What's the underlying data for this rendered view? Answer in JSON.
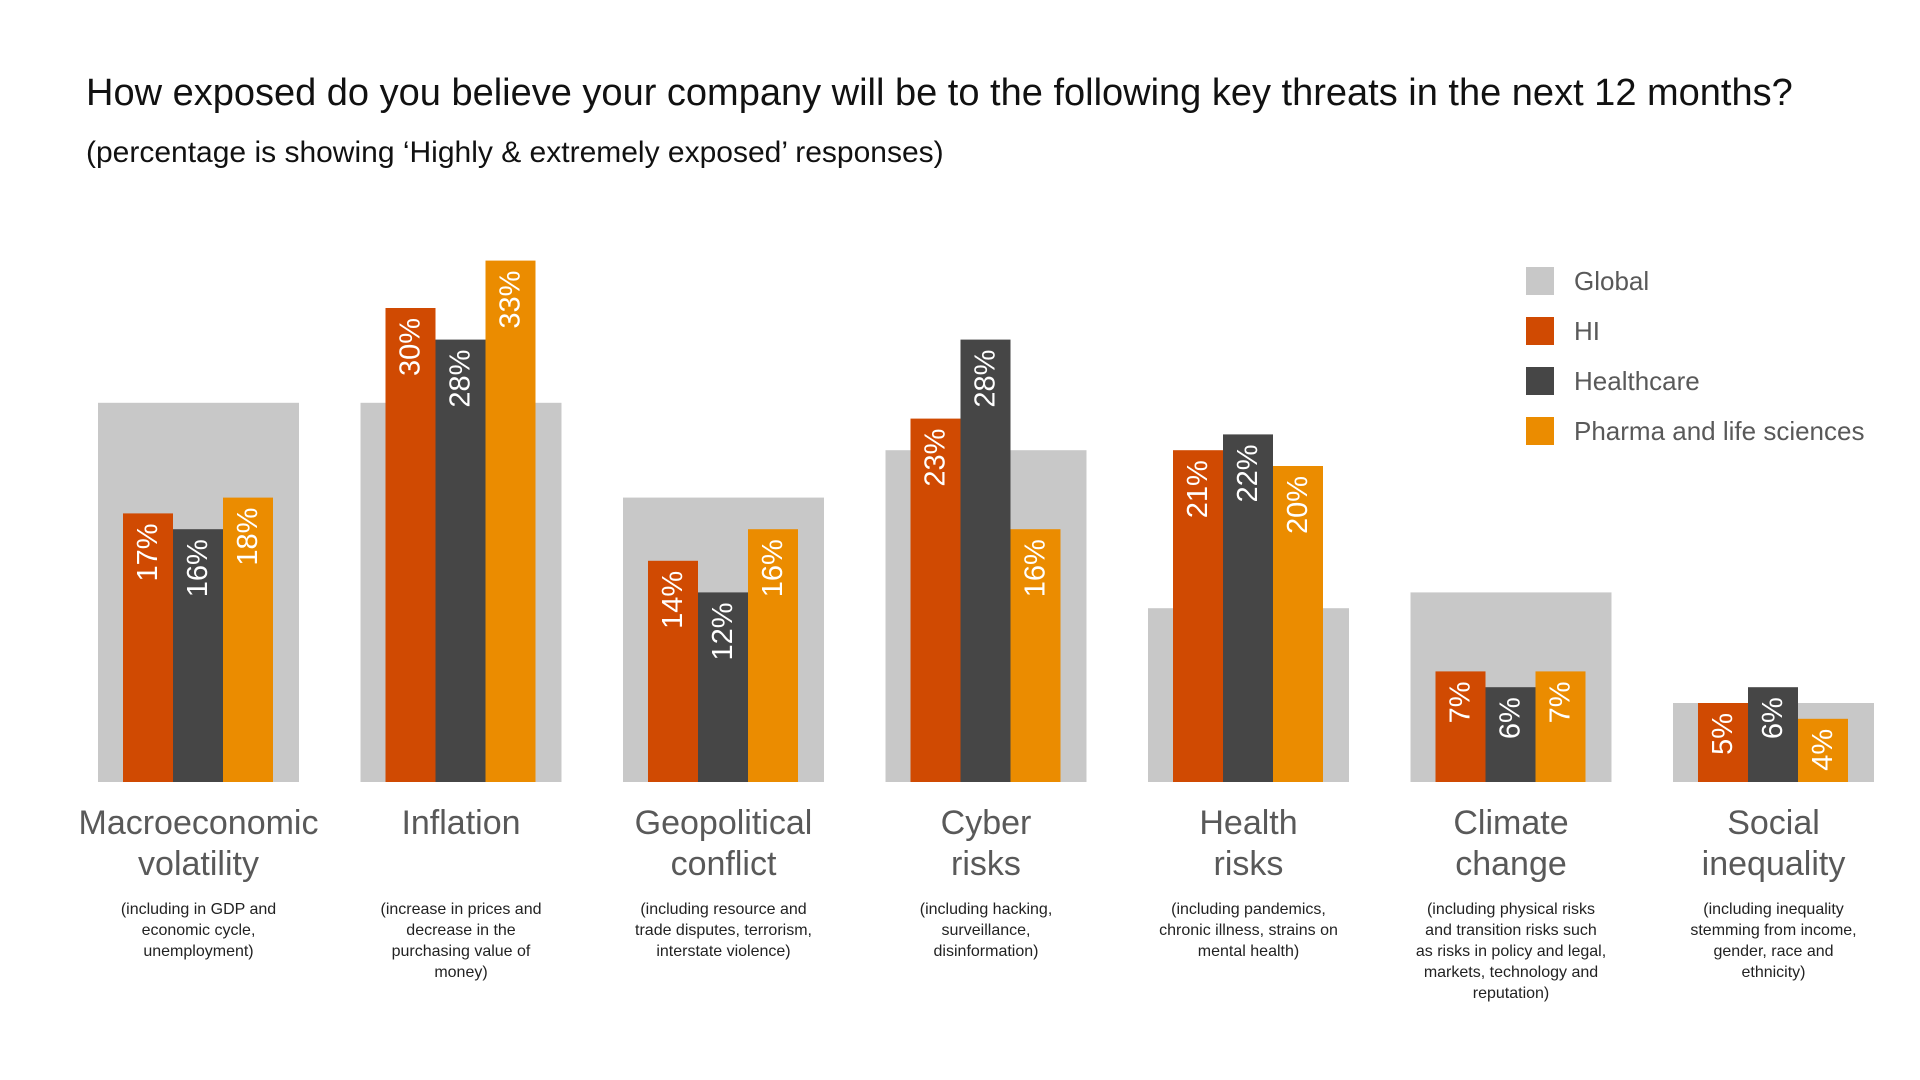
{
  "chart_data": {
    "type": "bar",
    "title": "How exposed do you believe your company will be to the following key threats in the next 12 months?",
    "subtitle": "(percentage is showing ‘Highly & extremely exposed’ responses)",
    "ylim": [
      0,
      35
    ],
    "legend_position": "top-right",
    "categories": [
      {
        "name": [
          "Macroeconomic",
          "volatility"
        ],
        "note": [
          "(including in GDP and",
          "economic cycle,",
          "unemployment)"
        ]
      },
      {
        "name": [
          "Inflation"
        ],
        "note": [
          "(increase in prices and",
          "decrease in the",
          "purchasing value of",
          "money)"
        ]
      },
      {
        "name": [
          "Geopolitical",
          "conflict"
        ],
        "note": [
          "(including resource and",
          "trade disputes, terrorism,",
          "interstate violence)"
        ]
      },
      {
        "name": [
          "Cyber",
          "risks"
        ],
        "note": [
          "(including hacking,",
          "surveillance,",
          "disinformation)"
        ]
      },
      {
        "name": [
          "Health",
          "risks"
        ],
        "note": [
          "(including pandemics,",
          "chronic illness, strains on",
          "mental health)"
        ]
      },
      {
        "name": [
          "Climate",
          "change"
        ],
        "note": [
          "(including physical risks",
          "and transition risks such",
          "as risks in policy and legal,",
          "markets, technology and",
          "reputation)"
        ]
      },
      {
        "name": [
          "Social",
          "inequality"
        ],
        "note": [
          "(including inequality",
          "stemming from income,",
          "gender, race and",
          "ethnicity)"
        ]
      }
    ],
    "series": [
      {
        "name": "Global",
        "color": "#c8c8c8",
        "values": [
          24,
          24,
          18,
          21,
          11,
          12,
          5
        ],
        "labeled": false
      },
      {
        "name": "HI",
        "color": "#d04a02",
        "values": [
          17,
          30,
          14,
          23,
          21,
          7,
          5
        ],
        "labels": [
          "17%",
          "30%",
          "14%",
          "23%",
          "21%",
          "7%",
          "5%"
        ]
      },
      {
        "name": "Healthcare",
        "color": "#464646",
        "values": [
          16,
          28,
          12,
          28,
          22,
          6,
          6
        ],
        "labels": [
          "16%",
          "28%",
          "12%",
          "28%",
          "22%",
          "6%",
          "6%"
        ]
      },
      {
        "name": "Pharma and life sciences",
        "color": "#eb8c00",
        "values": [
          18,
          33,
          16,
          16,
          20,
          7,
          4
        ],
        "labels": [
          "18%",
          "33%",
          "16%",
          "16%",
          "20%",
          "7%",
          "4%"
        ]
      }
    ]
  }
}
